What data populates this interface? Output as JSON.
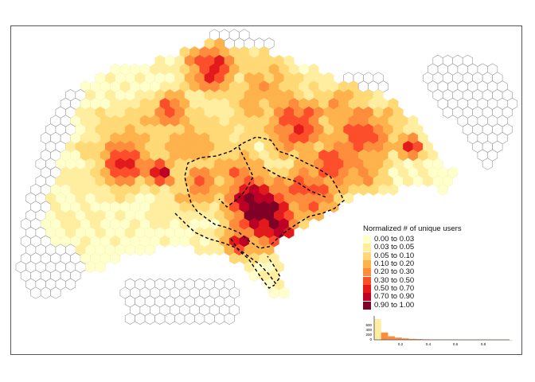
{
  "legend": {
    "title": "Normalized # of unique users",
    "items": [
      {
        "label": "0.00 to 0.03",
        "color": "#ffffcc"
      },
      {
        "label": "0.03 to 0.05",
        "color": "#ffeda0"
      },
      {
        "label": "0.05 to 0.10",
        "color": "#fed976"
      },
      {
        "label": "0.10 to 0.20",
        "color": "#feb24c"
      },
      {
        "label": "0.20 to 0.30",
        "color": "#fd8d3c"
      },
      {
        "label": "0.30 to 0.50",
        "color": "#fc4e2a"
      },
      {
        "label": "0.50 to 0.70",
        "color": "#e31a1c"
      },
      {
        "label": "0.70 to 0.90",
        "color": "#bd0026"
      },
      {
        "label": "0.90 to 1.00",
        "color": "#800026"
      }
    ]
  },
  "histogram": {
    "y_ticks": [
      "600",
      "400",
      "200",
      "0"
    ],
    "x_ticks": [
      "0.2",
      "0.4",
      "0.6",
      "0.8"
    ],
    "bars": [
      {
        "x": 0.0,
        "count": 650
      },
      {
        "x": 0.05,
        "count": 230
      },
      {
        "x": 0.1,
        "count": 110
      },
      {
        "x": 0.15,
        "count": 70
      },
      {
        "x": 0.2,
        "count": 45
      },
      {
        "x": 0.25,
        "count": 30
      },
      {
        "x": 0.3,
        "count": 22
      },
      {
        "x": 0.35,
        "count": 16
      },
      {
        "x": 0.4,
        "count": 12
      },
      {
        "x": 0.45,
        "count": 9
      },
      {
        "x": 0.5,
        "count": 7
      },
      {
        "x": 0.55,
        "count": 5
      },
      {
        "x": 0.6,
        "count": 4
      },
      {
        "x": 0.65,
        "count": 3
      },
      {
        "x": 0.7,
        "count": 2
      },
      {
        "x": 0.75,
        "count": 2
      },
      {
        "x": 0.8,
        "count": 1
      },
      {
        "x": 0.85,
        "count": 1
      },
      {
        "x": 0.9,
        "count": 1
      },
      {
        "x": 0.95,
        "count": 1
      }
    ],
    "bar_color": "#fd8d3c",
    "first_bar_color": "#ffeda0"
  },
  "colors": {
    "empty_hex_fill": "#ffffff",
    "empty_hex_stroke": "#999999",
    "boundary_line": "#000000"
  }
}
